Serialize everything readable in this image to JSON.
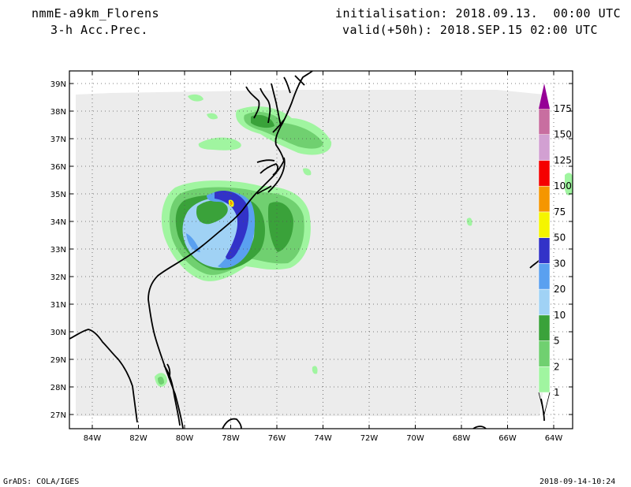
{
  "header": {
    "model": "nmmE-a9km_Florens",
    "field": "3-h Acc.Prec.",
    "init": "initialisation: 2018.09.13.  00:00 UTC",
    "valid": "valid(+50h): 2018.SEP.15 02:00 UTC"
  },
  "footer": {
    "credit": "GrADS: COLA/IGES",
    "timestamp": "2018-09-14-10:24"
  },
  "map": {
    "lat_labels": [
      "39N",
      "38N",
      "37N",
      "36N",
      "35N",
      "34N",
      "33N",
      "32N",
      "31N",
      "30N",
      "29N",
      "28N",
      "27N"
    ],
    "lon_labels": [
      "84W",
      "82W",
      "80W",
      "78W",
      "76W",
      "74W",
      "72W",
      "70W",
      "68W",
      "66W",
      "64W"
    ],
    "lat_values": [
      39,
      38,
      37,
      36,
      35,
      34,
      33,
      32,
      31,
      30,
      29,
      28,
      27
    ],
    "lon_values": [
      -84,
      -82,
      -80,
      -78,
      -76,
      -74,
      -72,
      -70,
      -68,
      -66,
      -64
    ],
    "grid": true
  },
  "legend": {
    "labels": [
      "1",
      "2",
      "5",
      "10",
      "20",
      "30",
      "50",
      "75",
      "100",
      "125",
      "150",
      "175"
    ],
    "colors": [
      "#a0f5a0",
      "#70d070",
      "#3aa23a",
      "#a0d2f5",
      "#5aa0f0",
      "#3232c8",
      "#f5f500",
      "#f59600",
      "#f50000",
      "#d2a0d2",
      "#c86ea0",
      "#960096"
    ]
  },
  "colors": {
    "background_fill": "#ececec",
    "coast": "#000000"
  }
}
